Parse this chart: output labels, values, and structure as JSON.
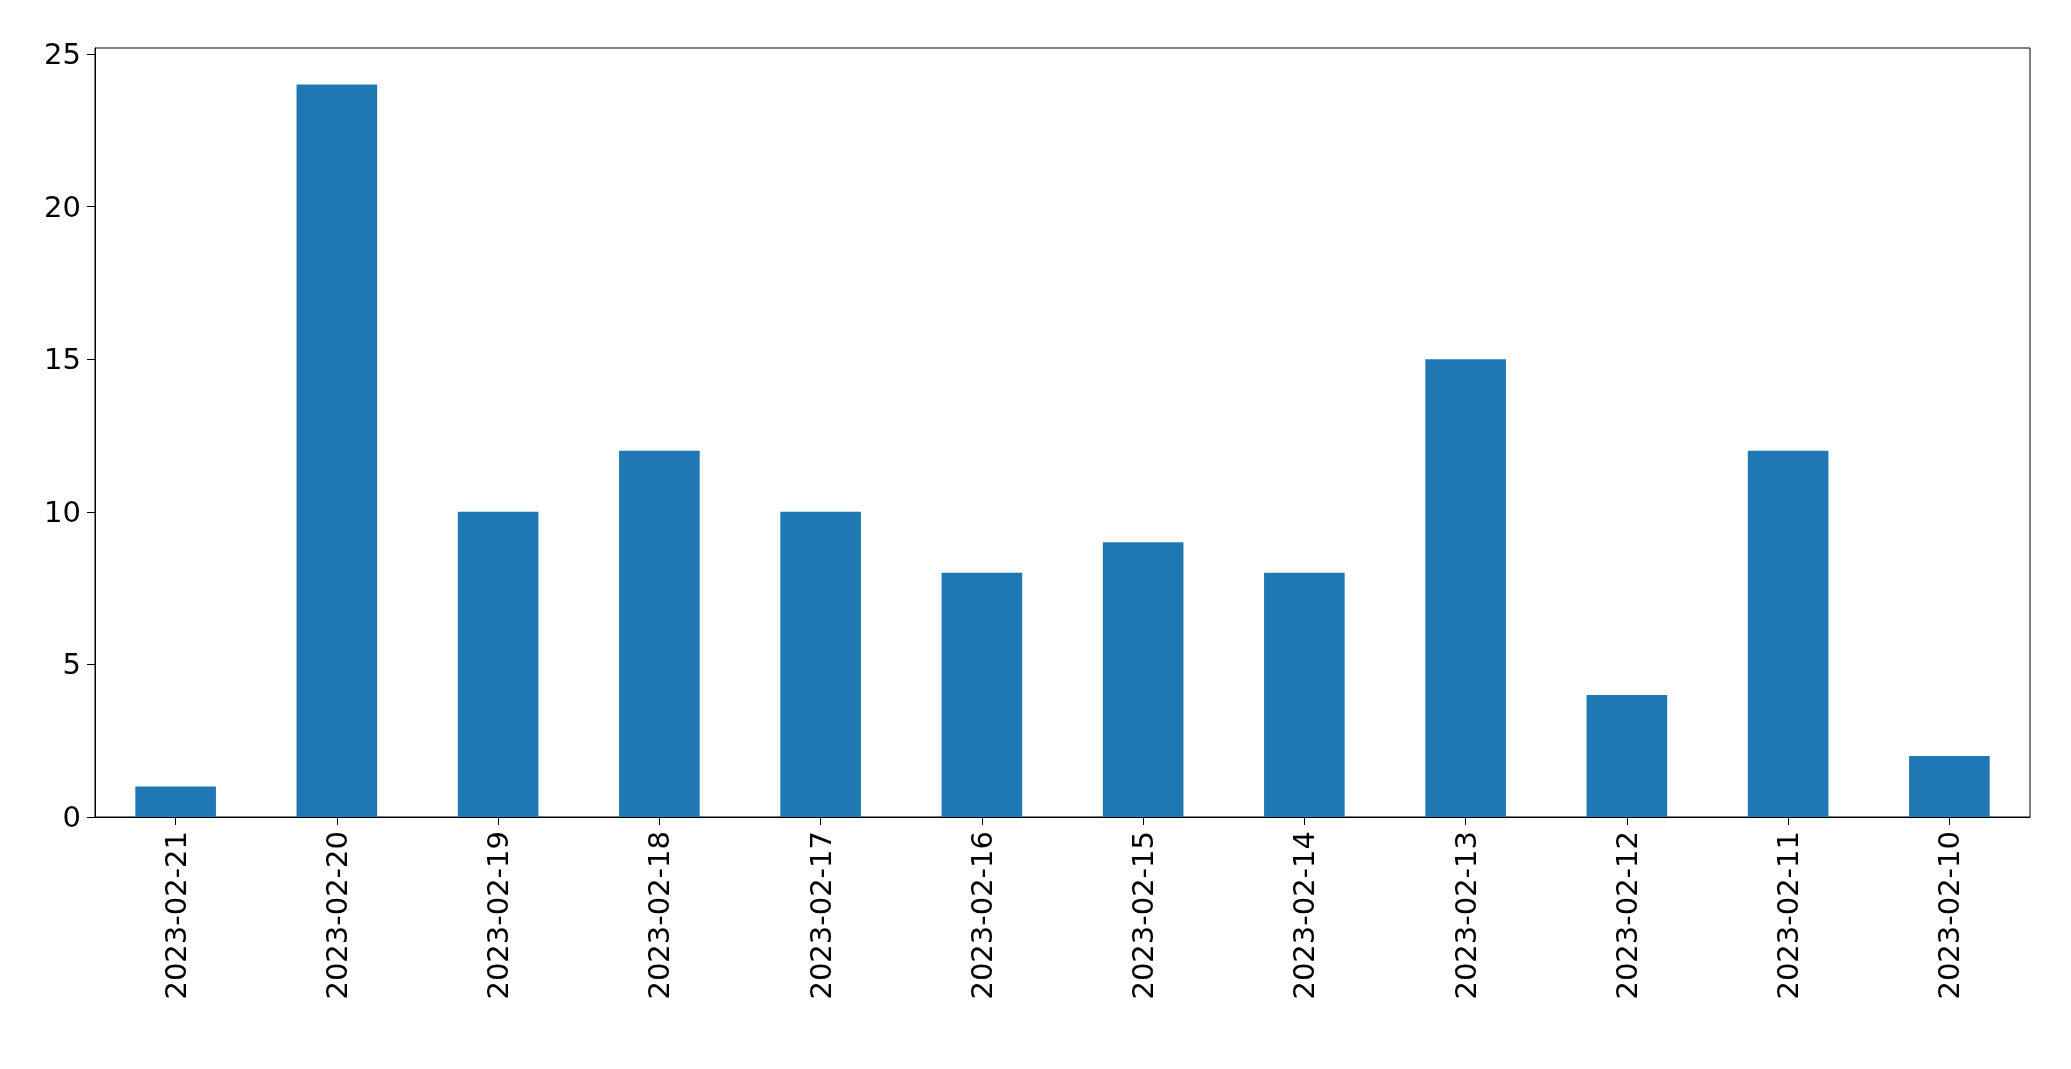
{
  "chart_data": {
    "type": "bar",
    "categories": [
      "2023-02-21",
      "2023-02-20",
      "2023-02-19",
      "2023-02-18",
      "2023-02-17",
      "2023-02-16",
      "2023-02-15",
      "2023-02-14",
      "2023-02-13",
      "2023-02-12",
      "2023-02-11",
      "2023-02-10"
    ],
    "values": [
      1,
      24,
      10,
      12,
      10,
      8,
      9,
      8,
      15,
      4,
      12,
      2
    ],
    "color": "#1f77b4",
    "ylim": [
      0,
      25.2
    ],
    "yticks": [
      0,
      5,
      10,
      15,
      20,
      25
    ],
    "grid": false
  }
}
